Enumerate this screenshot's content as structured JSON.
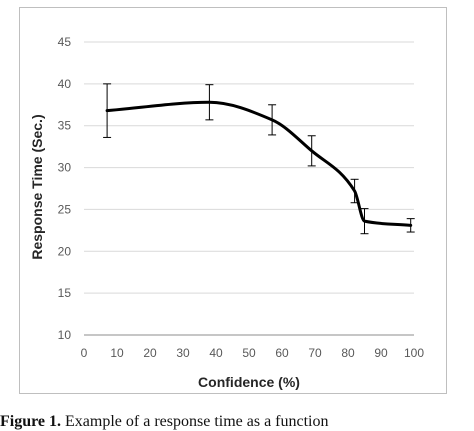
{
  "caption": {
    "label": "Figure 1",
    "text": "Example of a response time as a function"
  },
  "chart_data": {
    "type": "line",
    "title": "",
    "xlabel": "Confidence (%)",
    "ylabel": "Response Time (Sec.)",
    "xlim": [
      0,
      100
    ],
    "ylim": [
      10,
      45
    ],
    "x_ticks": [
      0,
      10,
      20,
      30,
      40,
      50,
      60,
      70,
      80,
      90,
      100
    ],
    "y_ticks": [
      10,
      15,
      20,
      25,
      30,
      35,
      40,
      45
    ],
    "grid": "horizontal",
    "legend": "none",
    "series": [
      {
        "color": "#000000",
        "points": [
          {
            "x": 7,
            "y": 36.8,
            "err": 3.2
          },
          {
            "x": 38,
            "y": 37.8,
            "err": 2.1
          },
          {
            "x": 57,
            "y": 35.7,
            "err": 1.8
          },
          {
            "x": 69,
            "y": 32.0,
            "err": 1.8
          },
          {
            "x": 82,
            "y": 27.2,
            "err": 1.4
          },
          {
            "x": 85,
            "y": 23.6,
            "err": 1.5
          },
          {
            "x": 99,
            "y": 23.1,
            "err": 0.8
          }
        ]
      }
    ]
  }
}
